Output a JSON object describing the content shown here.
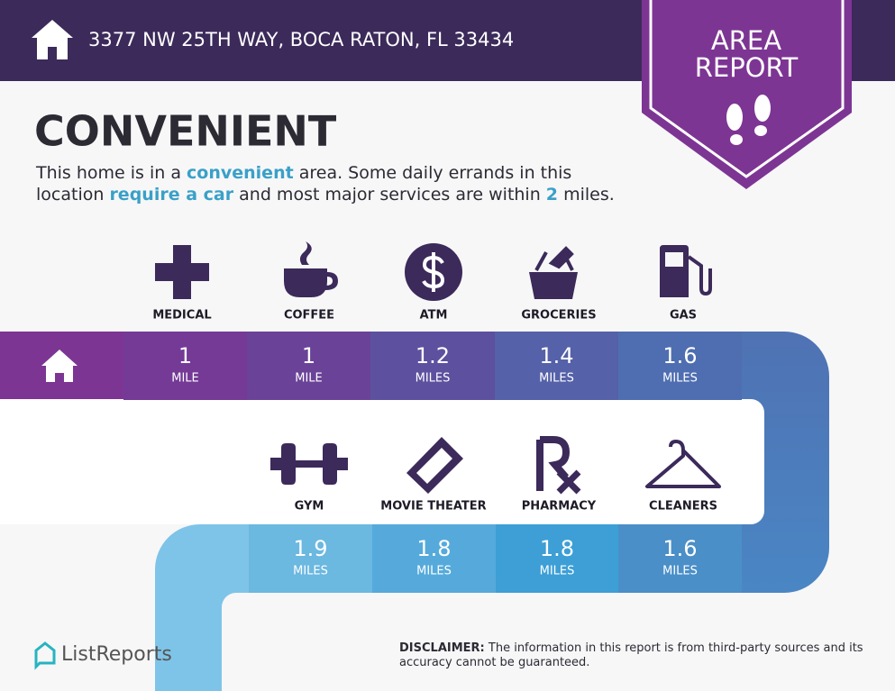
{
  "header": {
    "address": "3377 NW 25TH WAY, BOCA RATON, FL 33434"
  },
  "badge": {
    "line1": "AREA",
    "line2": "REPORT"
  },
  "title": "CONVENIENT",
  "description": {
    "lines": [
      [
        "This home is in a ",
        "convenient",
        " area. Some daily errands in this"
      ],
      [
        "location ",
        "require a car",
        " and most major services are within ",
        "2",
        " miles."
      ]
    ]
  },
  "services": [
    {
      "name": "MEDICAL",
      "distance": 1,
      "unit": "MILE"
    },
    {
      "name": "COFFEE",
      "distance": 1,
      "unit": "MILE"
    },
    {
      "name": "ATM",
      "distance": 1.2,
      "unit": "MILES"
    },
    {
      "name": "GROCERIES",
      "distance": 1.4,
      "unit": "MILES"
    },
    {
      "name": "GAS",
      "distance": 1.6,
      "unit": "MILES"
    },
    {
      "name": "GYM",
      "distance": 1.9,
      "unit": "MILES"
    },
    {
      "name": "MOVIE THEATER",
      "distance": 1.8,
      "unit": "MILES"
    },
    {
      "name": "PHARMACY",
      "distance": 1.8,
      "unit": "MILES"
    },
    {
      "name": "CLEANERS",
      "distance": 1.6,
      "unit": "MILES"
    }
  ],
  "footer": {
    "brand": "ListReports",
    "disclaimer_label": "DISCLAIMER:",
    "disclaimer": "The information in this report is from third-party sources and its accuracy cannot be guaranteed."
  }
}
